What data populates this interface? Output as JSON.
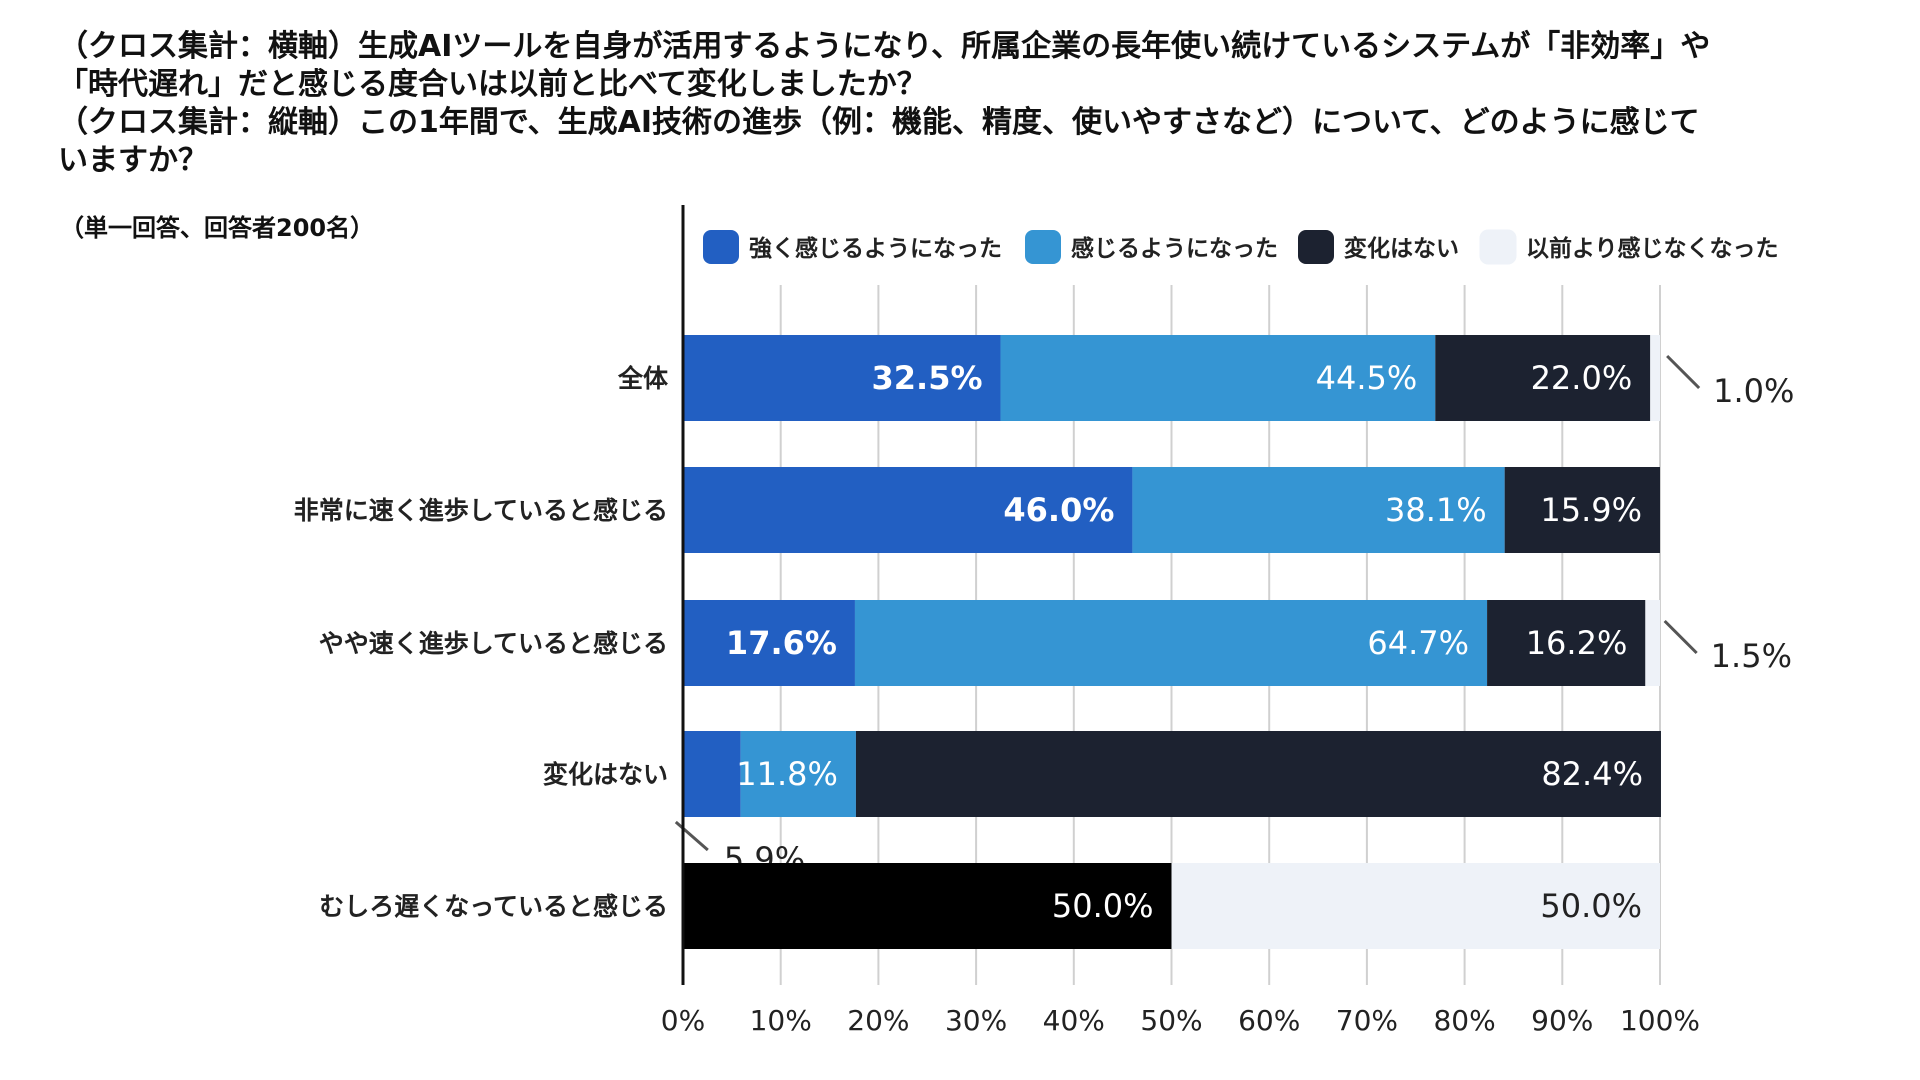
{
  "title_lines": [
    "（クロス集計：横軸）生成AIツールを自身が活用するようになり、所属企業の長年使い続けているシステムが「非効率」や",
    "「時代遅れ」だと感じる度合いは以前と比べて変化しましたか？",
    "（クロス集計：縦軸）この1年間で、生成AI技術の進歩（例：機能、精度、使いやすさなど）について、どのように感じて",
    "いますか？"
  ],
  "note": "（単一回答、回答者200名）",
  "chart_data": {
    "type": "bar",
    "orientation": "horizontal",
    "stacked": true,
    "categories": [
      "全体",
      "非常に速く進歩していると感じる",
      "やや速く進歩していると感じる",
      "変化はない",
      "むしろ遅くなっていると感じる"
    ],
    "series": [
      {
        "name": "強く感じるようになった",
        "color": "#225FC2",
        "values": [
          32.5,
          46.0,
          17.6,
          5.9,
          0
        ]
      },
      {
        "name": "感じるようになった",
        "color": "#3595D3",
        "values": [
          44.5,
          38.1,
          64.7,
          11.8,
          0
        ]
      },
      {
        "name": "変化はない",
        "color": "#1C2230",
        "values": [
          22.0,
          15.9,
          16.2,
          82.4,
          50.0
        ]
      },
      {
        "name": "以前より感じなくなった",
        "color": "#EEF2F8",
        "values": [
          1.0,
          0,
          1.5,
          0,
          50.0
        ]
      }
    ],
    "data_labels": [
      [
        "32.5%",
        "44.5%",
        "22.0%",
        "1.0%"
      ],
      [
        "46.0%",
        "38.1%",
        "15.9%",
        ""
      ],
      [
        "17.6%",
        "64.7%",
        "16.2%",
        "1.5%"
      ],
      [
        "5.9%",
        "11.8%",
        "82.4%",
        ""
      ],
      [
        "",
        "",
        "50.0%",
        "50.0%"
      ]
    ],
    "x_ticks": [
      "0%",
      "10%",
      "20%",
      "30%",
      "40%",
      "50%",
      "60%",
      "70%",
      "80%",
      "90%",
      "100%"
    ],
    "xlim": [
      0,
      100
    ],
    "grid": true,
    "legend_position": "top",
    "colors": {
      "grid": "#D0D0D0",
      "axis": "#111111",
      "label_dark": "#222222",
      "label_light": "#ffffff"
    }
  }
}
